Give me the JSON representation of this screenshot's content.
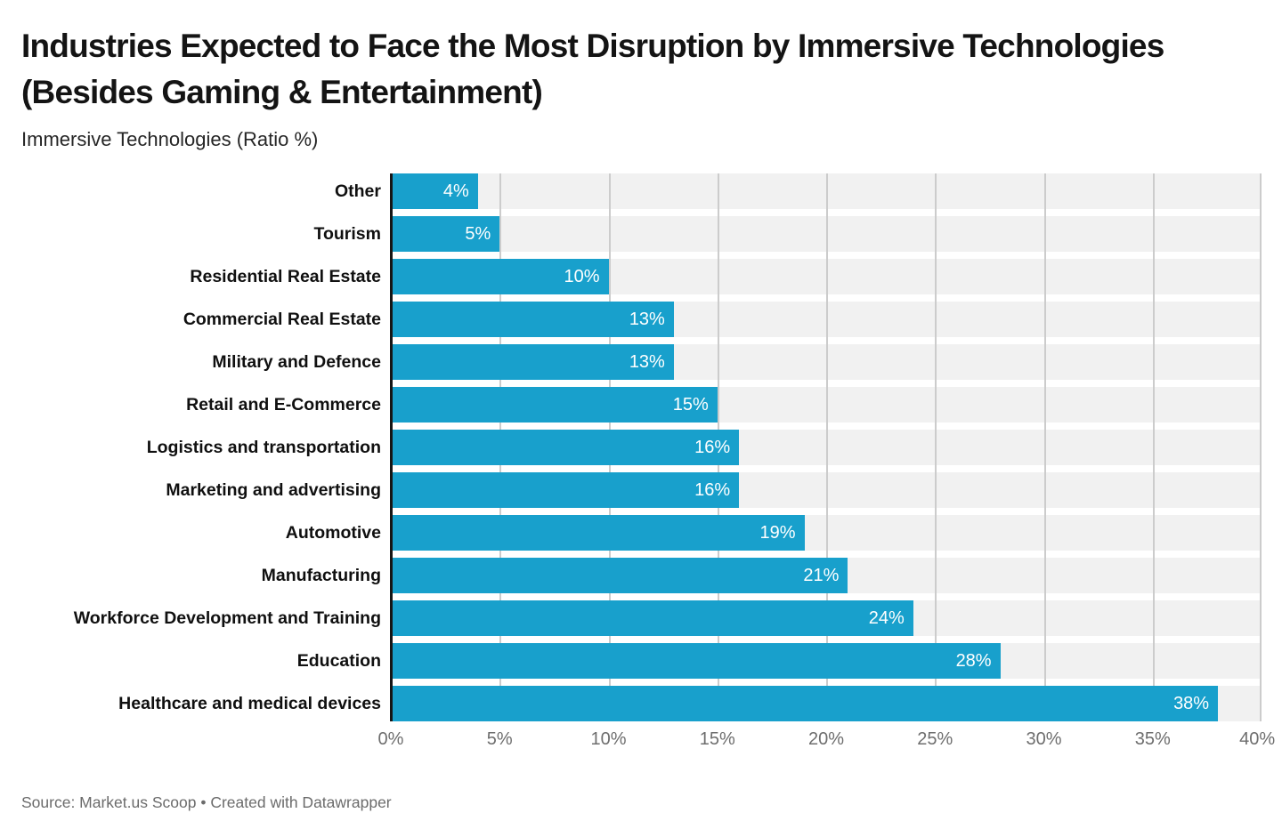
{
  "header": {
    "title": "Industries Expected to Face the Most Disruption by Immersive Technologies (Besides Gaming & Entertainment)",
    "subtitle": "Immersive Technologies (Ratio %)"
  },
  "chart_data": {
    "type": "bar",
    "orientation": "horizontal",
    "title": "Industries Expected to Face the Most Disruption by Immersive Technologies (Besides Gaming & Entertainment)",
    "subtitle": "Immersive Technologies (Ratio %)",
    "categories": [
      "Other",
      "Tourism",
      "Residential Real Estate",
      "Commercial Real Estate",
      "Military and Defence",
      "Retail and E-Commerce",
      "Logistics and transportation",
      "Marketing and advertising",
      "Automotive",
      "Manufacturing",
      "Workforce Development and Training",
      "Education",
      "Healthcare and medical devices"
    ],
    "values": [
      4,
      5,
      10,
      13,
      13,
      15,
      16,
      16,
      19,
      21,
      24,
      28,
      38
    ],
    "value_labels": [
      "4%",
      "5%",
      "10%",
      "13%",
      "13%",
      "15%",
      "16%",
      "16%",
      "19%",
      "21%",
      "24%",
      "28%",
      "38%"
    ],
    "xlim": [
      0,
      40
    ],
    "x_tick_labels": [
      "0%",
      "5%",
      "10%",
      "15%",
      "20%",
      "25%",
      "30%",
      "35%",
      "40%"
    ],
    "grid": true,
    "legend": "none",
    "colors": {
      "bar": "#18a0cc",
      "row_band": "#f1f1f1",
      "gridline": "#cccccc",
      "axis_line": "#161616",
      "value_label": "#ffffff",
      "tick_label": "#6e6e6e"
    }
  },
  "footer": {
    "source_note": "Source: Market.us Scoop • Created with Datawrapper"
  }
}
